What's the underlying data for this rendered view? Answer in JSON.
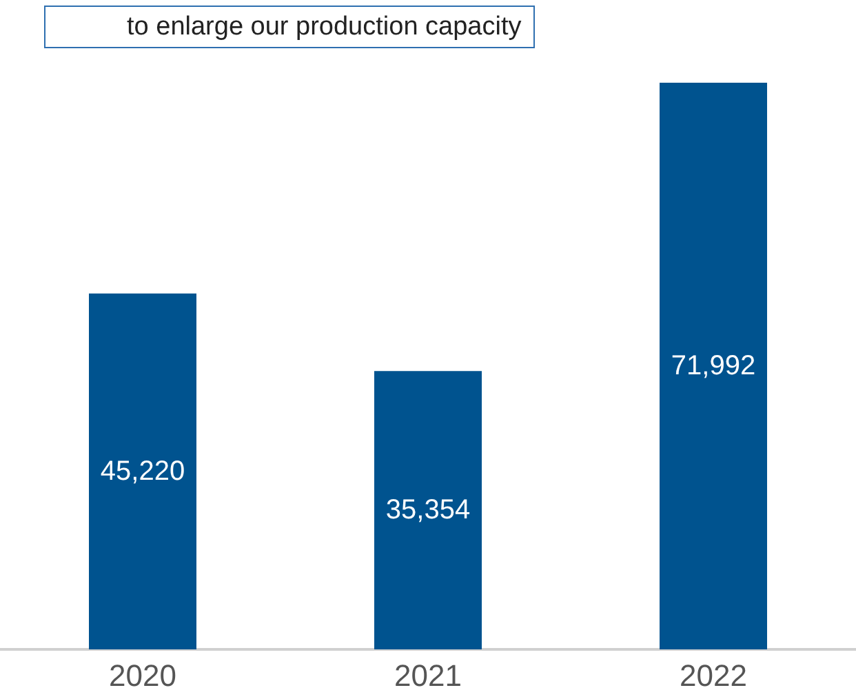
{
  "chart_data": {
    "type": "bar",
    "categories": [
      "2020",
      "2021",
      "2022"
    ],
    "values": [
      45220,
      35354,
      71992
    ],
    "value_labels": [
      "45,220",
      "35,354",
      "71,992"
    ],
    "color": "#00538f",
    "annotations": [
      "to enlarge our production capacity"
    ]
  }
}
